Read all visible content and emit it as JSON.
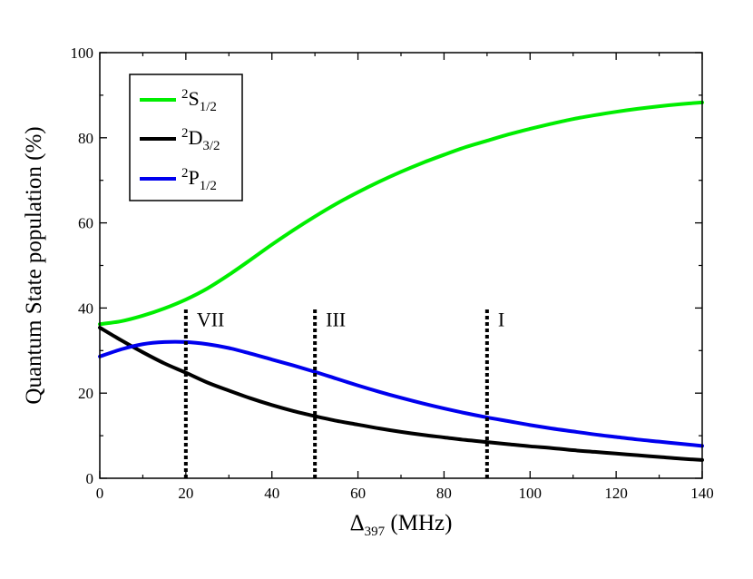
{
  "chart_data": {
    "type": "line",
    "xlabel": {
      "main": "Δ",
      "sub": "397",
      "rest": " (MHz)"
    },
    "ylabel": "Quantum State population (%)",
    "xlim": [
      0,
      140
    ],
    "ylim": [
      0,
      100
    ],
    "xticks": [
      0,
      20,
      40,
      60,
      80,
      100,
      120,
      140
    ],
    "yticks": [
      0,
      20,
      40,
      60,
      80,
      100
    ],
    "xtick_labels": [
      "0",
      "20",
      "40",
      "60",
      "80",
      "100",
      "120",
      "140"
    ],
    "ytick_labels": [
      "0",
      "20",
      "40",
      "60",
      "80",
      "100"
    ],
    "grid": false,
    "legend_position": "top-left",
    "series": [
      {
        "name": {
          "sup": "2",
          "main": "S",
          "sub": "1/2"
        },
        "color": "#00ee00",
        "x": [
          0,
          5,
          10,
          15,
          20,
          25,
          30,
          35,
          40,
          45,
          50,
          55,
          60,
          65,
          70,
          75,
          80,
          85,
          90,
          95,
          100,
          105,
          110,
          115,
          120,
          125,
          130,
          135,
          140
        ],
        "y": [
          36.2,
          36.9,
          38.2,
          39.9,
          42.0,
          44.6,
          47.8,
          51.3,
          54.9,
          58.3,
          61.5,
          64.5,
          67.2,
          69.7,
          72.0,
          74.1,
          76.0,
          77.8,
          79.3,
          80.8,
          82.1,
          83.3,
          84.4,
          85.3,
          86.1,
          86.8,
          87.4,
          87.9,
          88.3
        ]
      },
      {
        "name": {
          "sup": "2",
          "main": "D",
          "sub": "3/2"
        },
        "color": "#000000",
        "x": [
          0,
          5,
          10,
          15,
          20,
          25,
          30,
          35,
          40,
          45,
          50,
          55,
          60,
          65,
          70,
          75,
          80,
          85,
          90,
          95,
          100,
          105,
          110,
          115,
          120,
          125,
          130,
          135,
          140
        ],
        "y": [
          35.4,
          32.4,
          29.6,
          27.0,
          24.8,
          22.5,
          20.6,
          18.8,
          17.2,
          15.8,
          14.6,
          13.5,
          12.6,
          11.7,
          10.9,
          10.2,
          9.6,
          9.0,
          8.5,
          8.0,
          7.5,
          7.1,
          6.6,
          6.2,
          5.8,
          5.4,
          5.0,
          4.6,
          4.3
        ]
      },
      {
        "name": {
          "sup": "2",
          "main": "P",
          "sub": "1/2"
        },
        "color": "#0000ee",
        "x": [
          0,
          5,
          10,
          15,
          20,
          25,
          30,
          35,
          40,
          45,
          50,
          55,
          60,
          65,
          70,
          75,
          80,
          85,
          90,
          95,
          100,
          105,
          110,
          115,
          120,
          125,
          130,
          135,
          140
        ],
        "y": [
          28.6,
          30.3,
          31.5,
          32.0,
          32.0,
          31.5,
          30.6,
          29.3,
          27.9,
          26.5,
          25.0,
          23.4,
          21.8,
          20.3,
          18.9,
          17.6,
          16.4,
          15.3,
          14.3,
          13.4,
          12.5,
          11.7,
          11.0,
          10.3,
          9.7,
          9.1,
          8.6,
          8.1,
          7.6
        ]
      }
    ],
    "vertical_markers": [
      {
        "x": 20,
        "label": "VII",
        "y_top": 40
      },
      {
        "x": 50,
        "label": "III",
        "y_top": 40
      },
      {
        "x": 90,
        "label": "I",
        "y_top": 40
      }
    ]
  }
}
